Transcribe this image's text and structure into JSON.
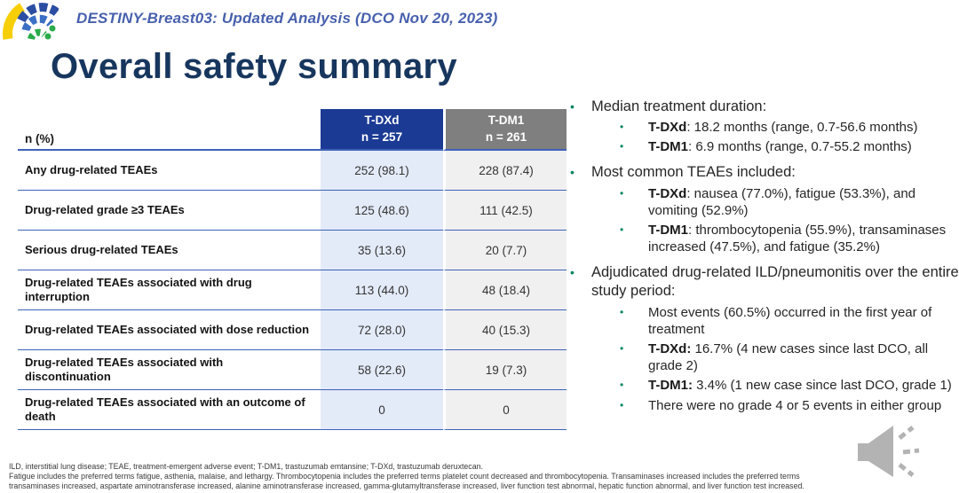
{
  "banner": {
    "title": "DESTINY-Breast03: Updated Analysis (DCO Nov 20, 2023)"
  },
  "slide": {
    "title": "Overall safety summary"
  },
  "table": {
    "corner_label": "n (%)",
    "columns": [
      {
        "drug": "T-DXd",
        "n": "n = 257"
      },
      {
        "drug": "T-DM1",
        "n": "n = 261"
      }
    ],
    "rows": [
      {
        "label": "Any drug-related TEAEs",
        "tdxd": "252 (98.1)",
        "tdm1": "228 (87.4)"
      },
      {
        "label": "Drug-related grade ≥3 TEAEs",
        "tdxd": "125 (48.6)",
        "tdm1": "111 (42.5)"
      },
      {
        "label": "Serious drug-related TEAEs",
        "tdxd": "35 (13.6)",
        "tdm1": "20 (7.7)"
      },
      {
        "label": "Drug-related TEAEs associated with drug interruption",
        "tdxd": "113 (44.0)",
        "tdm1": "48 (18.4)"
      },
      {
        "label": "Drug-related TEAEs associated with dose reduction",
        "tdxd": "72 (28.0)",
        "tdm1": "40 (15.3)"
      },
      {
        "label": "Drug-related TEAEs associated with discontinuation",
        "tdxd": "58 (22.6)",
        "tdm1": "19 (7.3)"
      },
      {
        "label": "Drug-related TEAEs associated with an outcome of death",
        "tdxd": "0",
        "tdm1": "0"
      }
    ]
  },
  "bullets": [
    {
      "level": 1,
      "bold": "",
      "text": "Median treatment duration:"
    },
    {
      "level": 2,
      "bold": "T-DXd",
      "text": ": 18.2 months (range, 0.7-56.6 months)"
    },
    {
      "level": 2,
      "bold": "T-DM1",
      "text": ": 6.9 months (range, 0.7-55.2 months)"
    },
    {
      "level": 1,
      "bold": "",
      "text": "Most common TEAEs included:"
    },
    {
      "level": 2,
      "bold": "T-DXd",
      "text": ": nausea (77.0%), fatigue (53.3%), and vomiting (52.9%)"
    },
    {
      "level": 2,
      "bold": "T-DM1",
      "text": ": thrombocytopenia (55.9%), transaminases increased (47.5%), and fatigue (35.2%)"
    },
    {
      "level": 1,
      "bold": "",
      "text": "Adjudicated drug-related ILD/pneumonitis over the entire study period:"
    },
    {
      "level": 2,
      "bold": "",
      "text": "Most events (60.5%) occurred in the first year of treatment"
    },
    {
      "level": 2,
      "bold": "T-DXd:",
      "text": " 16.7% (4 new cases since last DCO, all grade 2)"
    },
    {
      "level": 2,
      "bold": "T-DM1:",
      "text": " 3.4% (1 new case since last DCO, grade 1)"
    },
    {
      "level": 2,
      "bold": "",
      "text": "There were no grade 4 or 5 events in either group"
    }
  ],
  "footnotes": [
    "ILD, interstitial lung disease; TEAE, treatment-emergent adverse event; T-DM1, trastuzumab emtansine; T-DXd, trastuzumab deruxtecan.",
    "Fatigue includes the preferred terms fatigue, asthenia, malaise, and lethargy. Thrombocytopenia includes the preferred terms platelet count decreased and thrombocytopenia. Transaminases increased includes the preferred terms",
    "transaminases increased, aspartate aminotransferase increased, alanine aminotransferase increased, gamma-glutamyltransferase increased, liver function test abnormal, hepatic function abnormal, and liver function test increased."
  ],
  "icons": {
    "logo": "conference-fan-logo",
    "audio": "speaker-icon",
    "bullet": "bullet-dot-icon"
  },
  "colors": {
    "title_navy": "#17365d",
    "banner_blue": "#4760ad",
    "header_tdxd_blue": "#1b3a94",
    "header_tdm1_gray": "#7f7f7f",
    "col_tdxd_bg": "#e4ebf8",
    "col_tdm1_bg": "#f0f0f1",
    "table_line_blue": "#3f62b8",
    "bullet_green": "#00855c",
    "logo_yellow": "#f7cf08",
    "logo_blue": "#2b4ea2",
    "logo_green": "#2aab4a",
    "speaker_gray": "#a9a9a9"
  }
}
